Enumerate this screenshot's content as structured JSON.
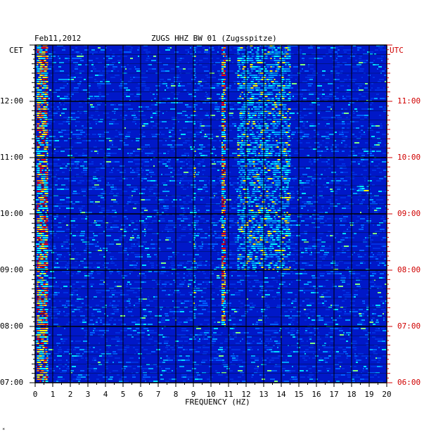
{
  "chart_data": {
    "type": "heatmap",
    "date": "Feb11,2012",
    "title": "ZUGS HHZ BW 01 (Zugsspitze)",
    "left_timezone": "CET",
    "right_timezone": "UTC",
    "xlabel": "FREQUENCY (HZ)",
    "xlim": [
      0,
      20
    ],
    "x_ticks": [
      "0",
      "1",
      "2",
      "3",
      "4",
      "5",
      "6",
      "7",
      "8",
      "9",
      "10",
      "11",
      "12",
      "13",
      "14",
      "15",
      "16",
      "17",
      "18",
      "19",
      "20"
    ],
    "left_time_ticks": [
      "12:00",
      "11:00",
      "10:00",
      "09:00",
      "08:00",
      "07:00"
    ],
    "right_time_ticks": [
      "11:00",
      "10:00",
      "09:00",
      "08:00",
      "07:00",
      "06:00"
    ],
    "time_range_cet": [
      "07:00",
      "13:00"
    ],
    "background_color": "#0018c8",
    "line_color": "#000000",
    "bright_features": [
      {
        "frequency_hz": [
          0.1,
          0.7
        ],
        "time_cet": [
          "07:00",
          "13:00"
        ],
        "intensity": "high"
      },
      {
        "frequency_hz": [
          9.0,
          9.1
        ],
        "time_cet": [
          "08:00",
          "13:00"
        ],
        "intensity": "medium"
      },
      {
        "frequency_hz": [
          10.6,
          10.8
        ],
        "time_cet": [
          "08:00",
          "13:00"
        ],
        "intensity": "high"
      },
      {
        "frequency_hz": [
          11.5,
          14.5
        ],
        "time_cet": [
          "09:00",
          "13:00"
        ],
        "intensity": "medium"
      },
      {
        "frequency_hz": [
          18.3,
          19.0
        ],
        "time_cet": [
          "10:25",
          "10:30"
        ],
        "intensity": "medium"
      }
    ]
  },
  "footer_mark": "*"
}
